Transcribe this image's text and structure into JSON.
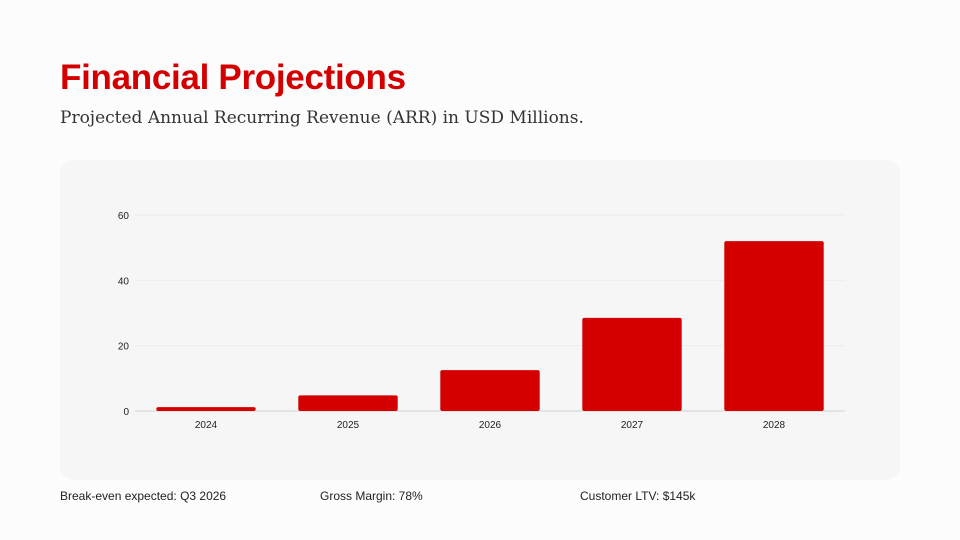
{
  "header": {
    "title": "Financial Projections",
    "subtitle": "Projected Annual Recurring Revenue (ARR) in USD Millions."
  },
  "chart_data": {
    "type": "bar",
    "categories": [
      "2024",
      "2025",
      "2026",
      "2027",
      "2028"
    ],
    "values": [
      1.2,
      4.8,
      12.5,
      28.5,
      52
    ],
    "ylim": [
      0,
      60
    ],
    "yticks": [
      0,
      20,
      40,
      60
    ],
    "grid": true,
    "color": "#d40000"
  },
  "footer": {
    "items": [
      "Break-even expected: Q3 2026",
      "Gross Margin: 78%",
      "Customer LTV: $145k"
    ]
  }
}
